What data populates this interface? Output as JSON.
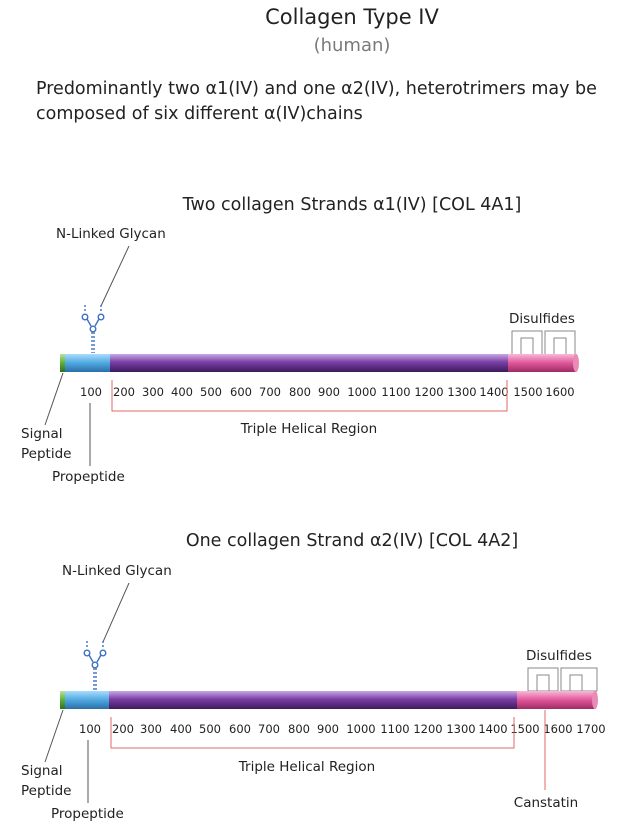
{
  "title": "Collagen Type IV",
  "subtitle": "(human)",
  "description": {
    "line1": "Predominantly two α1(IV) and one α2(IV), heterotrimers may be",
    "line2": "composed of six different α(IV)chains"
  },
  "strands": [
    {
      "title": "Two collagen Strands α1(IV) [COL 4A1]",
      "glycan_label": "N-Linked Glycan",
      "disulfides_label": "Disulfides",
      "signal_label_line1": "Signal",
      "signal_label_line2": "Peptide",
      "propeptide_label": "Propeptide",
      "region_label": "Triple Helical Region",
      "ticks": [
        "100",
        "200",
        "300",
        "400",
        "500",
        "600",
        "700",
        "800",
        "900",
        "1000",
        "1100",
        "1200",
        "1300",
        "1400",
        "1500",
        "1600"
      ],
      "extra_label": ""
    },
    {
      "title": "One collagen Strand α2(IV) [COL 4A2]",
      "glycan_label": "N-Linked Glycan",
      "disulfides_label": "Disulfides",
      "signal_label_line1": "Signal",
      "signal_label_line2": "Peptide",
      "propeptide_label": "Propeptide",
      "region_label": "Triple Helical Region",
      "ticks": [
        "100",
        "200",
        "300",
        "400",
        "500",
        "600",
        "700",
        "800",
        "900",
        "1000",
        "1100",
        "1200",
        "1300",
        "1400",
        "1500",
        "1600",
        "1700"
      ],
      "extra_label": "Canstatin"
    }
  ],
  "colors": {
    "signal": "#5fae3c",
    "propeptide": "#4fa8e0",
    "helical": "#7a3fa6",
    "disulfide": "#e0559a",
    "bracket": "#e06a6a",
    "glycan": "#3d6fc4"
  }
}
